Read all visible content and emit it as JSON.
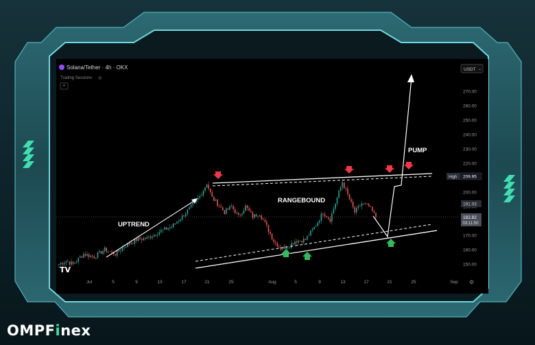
{
  "brand": {
    "name_pre": "OMPF",
    "name_i": "i",
    "name_post": "nex"
  },
  "chart": {
    "symbol": "Solana/Tether · 4h · OKX",
    "sub": "Trading Sessions",
    "currency": "USDT",
    "currency_arrow": "⌄",
    "collapse_glyph": "^",
    "settings_glyph": "⚙",
    "logo": "TV"
  },
  "colors": {
    "bull": "#26a69a",
    "bear": "#ef5350",
    "frame": "#3a8b94",
    "frame_glow": "#5ad0d8",
    "accent_green": "#3ee0b0",
    "marker_red": "#f23645",
    "marker_green": "#2ebd5a"
  },
  "chart_data": {
    "type": "candlestick",
    "x_ticks": [
      "Jul",
      "5",
      "9",
      "13",
      "17",
      "21",
      "25",
      "Aug",
      "5",
      "9",
      "13",
      "17",
      "21",
      "25",
      "Sep"
    ],
    "y_ticks": [
      150,
      160,
      170,
      180,
      190,
      200,
      210,
      220,
      230,
      240,
      250,
      260,
      270
    ],
    "y_tick_labels": [
      "150.00",
      "160.00",
      "170.00",
      "180.00",
      "190.00",
      "200.00",
      "210.00",
      "220.00",
      "230.00",
      "240.00",
      "250.00",
      "260.00",
      "270.00"
    ],
    "ylim": [
      145,
      277
    ],
    "high_label": "High",
    "high_value": "209.95",
    "price_label": "191.03",
    "current_price": "182.82",
    "countdown": "03:11:50",
    "annotations": [
      {
        "text": "UPTREND"
      },
      {
        "text": "RANGEBOUND"
      },
      {
        "text": "PUMP"
      }
    ],
    "anchors": [
      {
        "i": 0,
        "p": 150
      },
      {
        "i": 4,
        "p": 152
      },
      {
        "i": 8,
        "p": 150
      },
      {
        "i": 14,
        "p": 157
      },
      {
        "i": 20,
        "p": 155
      },
      {
        "i": 26,
        "p": 160
      },
      {
        "i": 32,
        "p": 157
      },
      {
        "i": 38,
        "p": 163
      },
      {
        "i": 44,
        "p": 167
      },
      {
        "i": 50,
        "p": 168
      },
      {
        "i": 58,
        "p": 173
      },
      {
        "i": 64,
        "p": 176
      },
      {
        "i": 70,
        "p": 183
      },
      {
        "i": 76,
        "p": 191
      },
      {
        "i": 80,
        "p": 197
      },
      {
        "i": 84,
        "p": 206
      },
      {
        "i": 87,
        "p": 196
      },
      {
        "i": 90,
        "p": 192
      },
      {
        "i": 94,
        "p": 186
      },
      {
        "i": 98,
        "p": 190
      },
      {
        "i": 102,
        "p": 183
      },
      {
        "i": 106,
        "p": 190
      },
      {
        "i": 110,
        "p": 183
      },
      {
        "i": 114,
        "p": 185
      },
      {
        "i": 118,
        "p": 176
      },
      {
        "i": 122,
        "p": 166
      },
      {
        "i": 126,
        "p": 161
      },
      {
        "i": 130,
        "p": 162
      },
      {
        "i": 134,
        "p": 166
      },
      {
        "i": 140,
        "p": 167
      },
      {
        "i": 146,
        "p": 177
      },
      {
        "i": 150,
        "p": 186
      },
      {
        "i": 154,
        "p": 181
      },
      {
        "i": 158,
        "p": 196
      },
      {
        "i": 161,
        "p": 207
      },
      {
        "i": 164,
        "p": 198
      },
      {
        "i": 168,
        "p": 186
      },
      {
        "i": 172,
        "p": 192
      },
      {
        "i": 176,
        "p": 190
      },
      {
        "i": 180,
        "p": 182.8
      }
    ],
    "candle_count": 181
  }
}
